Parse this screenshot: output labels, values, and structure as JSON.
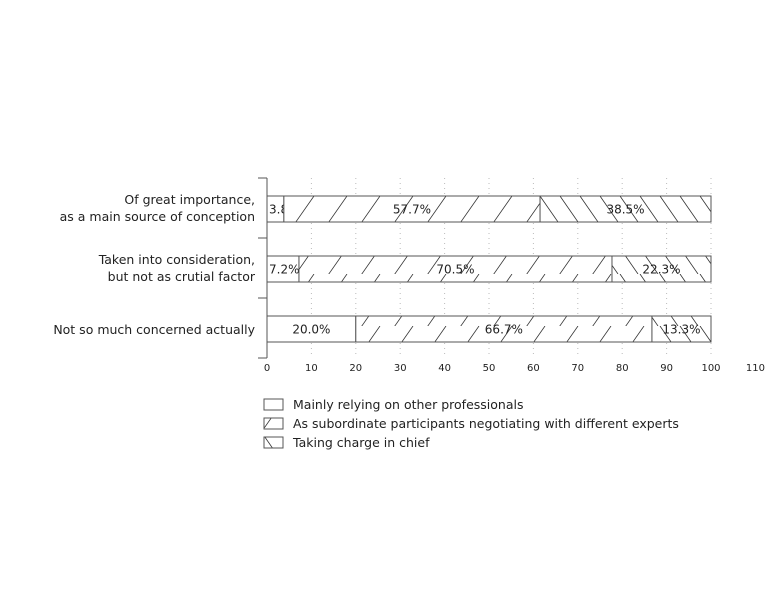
{
  "chart_data": {
    "type": "bar",
    "orientation": "horizontal",
    "stacked": true,
    "categories": [
      [
        "Of great importance,",
        "as a main source of conception"
      ],
      [
        "Taken into consideration,",
        "but not as crutial factor"
      ],
      [
        "Not so much concerned actually"
      ]
    ],
    "series": [
      {
        "name": "Mainly relying on other professionals",
        "values": [
          3.8,
          7.2,
          20.0
        ],
        "labels": [
          "3.8%",
          "7.2%",
          "20.0%"
        ],
        "pattern": "none"
      },
      {
        "name": "As subordinate participants negotiating with different experts",
        "values": [
          57.7,
          70.5,
          66.7
        ],
        "labels": [
          "57.7%",
          "70.5%",
          "66.7%"
        ],
        "pattern": "forward-hatch"
      },
      {
        "name": "Taking charge in chief",
        "values": [
          38.5,
          22.3,
          13.3
        ],
        "labels": [
          "38.5%",
          "22.3%",
          "13.3%"
        ],
        "pattern": "back-hatch"
      }
    ],
    "xlim": [
      0,
      110
    ],
    "xticks": [
      0,
      10,
      20,
      30,
      40,
      50,
      60,
      70,
      80,
      90,
      100,
      110
    ],
    "grid": "vertical dotted",
    "legend_placement": "bottom",
    "title": "",
    "xlabel": "",
    "ylabel": ""
  }
}
